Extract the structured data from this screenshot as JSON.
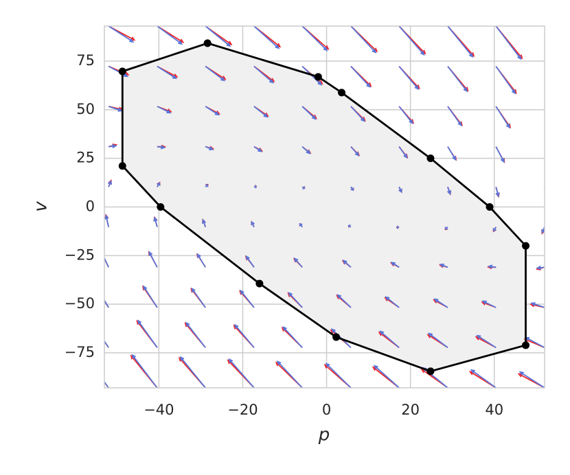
{
  "chart_data": {
    "type": "quiver",
    "xlabel": "p",
    "ylabel": "v",
    "xlim": [
      -53,
      52
    ],
    "ylim": [
      -93,
      93
    ],
    "xticks": [
      {
        "value": -40,
        "label": "−40"
      },
      {
        "value": -20,
        "label": "−20"
      },
      0,
      20,
      40
    ],
    "yticks": [
      {
        "value": -75,
        "label": "−75"
      },
      {
        "value": -50,
        "label": "−50"
      },
      {
        "value": -25,
        "label": "−25"
      },
      0,
      25,
      50,
      75
    ],
    "grid": true,
    "x": [
      -52,
      -40.4,
      -28.9,
      -17.3,
      -5.8,
      5.8,
      17.3,
      28.9,
      40.4,
      52
    ],
    "y": [
      93,
      72.3,
      51.7,
      31,
      10.3,
      -10.3,
      -31,
      -51.7,
      -72.3,
      -93
    ],
    "series": [
      {
        "color": "#f0262a",
        "u": [
          [
            93,
            93,
            93,
            93,
            93,
            93,
            93,
            93,
            93,
            93
          ],
          [
            72.3,
            72.3,
            72.3,
            72.3,
            72.3,
            72.3,
            72.3,
            72.3,
            72.3,
            72.3
          ],
          [
            51.7,
            51.7,
            51.7,
            51.7,
            51.7,
            51.7,
            51.7,
            51.7,
            51.7,
            51.7
          ],
          [
            31,
            31,
            31,
            31,
            31,
            31,
            31,
            31,
            31,
            31
          ],
          [
            10.3,
            10.3,
            10.3,
            10.3,
            10.3,
            10.3,
            10.3,
            10.3,
            10.3,
            10.3
          ],
          [
            -10.3,
            -10.3,
            -10.3,
            -10.3,
            -10.3,
            -10.3,
            -10.3,
            -10.3,
            -10.3,
            -10.3
          ],
          [
            -31,
            -31,
            -31,
            -31,
            -31,
            -31,
            -31,
            -31,
            -31,
            -31
          ],
          [
            -51.7,
            -51.7,
            -51.7,
            -51.7,
            -51.7,
            -51.7,
            -51.7,
            -51.7,
            -51.7,
            -51.7
          ],
          [
            -72.3,
            -72.3,
            -72.3,
            -72.3,
            -72.3,
            -72.3,
            -72.3,
            -72.3,
            -72.3,
            -72.3
          ],
          [
            -93,
            -93,
            -93,
            -93,
            -93,
            -93,
            -93,
            -93,
            -93,
            -93
          ]
        ],
        "v": [
          [
            -108,
            -125.4,
            -142.6,
            -160,
            -177.3,
            -194.7,
            -212,
            -229.4,
            -246.6,
            -264
          ],
          [
            -66.6,
            -84,
            -101.2,
            -118.6,
            -135.9,
            -153.3,
            -170.6,
            -188,
            -205.2,
            -222.6
          ],
          [
            -25.4,
            -42.8,
            -60,
            -77.4,
            -94.7,
            -112.1,
            -129.4,
            -146.8,
            -164,
            -181.4
          ],
          [
            16,
            -1.4,
            -18.6,
            -36,
            -53.3,
            -70.7,
            -88,
            -105.4,
            -122.6,
            -140
          ],
          [
            57.4,
            40,
            22.8,
            5.4,
            -11.9,
            -29.3,
            -46.6,
            -64,
            -81.2,
            -98.6
          ],
          [
            98.6,
            81.2,
            64,
            46.6,
            29.3,
            11.9,
            -5.4,
            -22.8,
            -40,
            -57.4
          ],
          [
            140,
            122.6,
            105.4,
            88,
            70.7,
            53.3,
            36,
            18.6,
            1.4,
            -16
          ],
          [
            181.4,
            164,
            146.8,
            129.4,
            112.1,
            94.7,
            77.4,
            60,
            42.8,
            25.4
          ],
          [
            222.6,
            205.2,
            188,
            170.6,
            153.3,
            135.9,
            118.6,
            101.2,
            84,
            66.6
          ],
          [
            264,
            246.6,
            229.4,
            212,
            194.7,
            177.3,
            160,
            142.6,
            125.4,
            108
          ]
        ]
      },
      {
        "color": "#5a75d8",
        "u": [
          [
            88.4,
            88.4,
            88.4,
            88.4,
            88.4,
            88.4,
            88.4,
            88.4,
            88.4,
            88.4
          ],
          [
            68.7,
            68.7,
            68.7,
            68.7,
            68.7,
            68.7,
            68.7,
            68.7,
            68.7,
            68.7
          ],
          [
            49.1,
            49.1,
            49.1,
            49.1,
            49.1,
            49.1,
            49.1,
            49.1,
            49.1,
            49.1
          ],
          [
            29.5,
            29.5,
            29.5,
            29.5,
            29.5,
            29.5,
            29.5,
            29.5,
            29.5,
            29.5
          ],
          [
            9.8,
            9.8,
            9.8,
            9.8,
            9.8,
            9.8,
            9.8,
            9.8,
            9.8,
            9.8
          ],
          [
            -9.8,
            -9.8,
            -9.8,
            -9.8,
            -9.8,
            -9.8,
            -9.8,
            -9.8,
            -9.8,
            -9.8
          ],
          [
            -29.5,
            -29.5,
            -29.5,
            -29.5,
            -29.5,
            -29.5,
            -29.5,
            -29.5,
            -29.5,
            -29.5
          ],
          [
            -49.1,
            -49.1,
            -49.1,
            -49.1,
            -49.1,
            -49.1,
            -49.1,
            -49.1,
            -49.1,
            -49.1
          ],
          [
            -68.7,
            -68.7,
            -68.7,
            -68.7,
            -68.7,
            -68.7,
            -68.7,
            -68.7,
            -68.7,
            -68.7
          ],
          [
            -88.4,
            -88.4,
            -88.4,
            -88.4,
            -88.4,
            -88.4,
            -88.4,
            -88.4,
            -88.4,
            -88.4
          ]
        ],
        "v": [
          [
            -122.5,
            -138.7,
            -154.8,
            -171.1,
            -187.2,
            -203.4,
            -219.5,
            -235.8,
            -251.9,
            -268.1
          ],
          [
            -79,
            -95.2,
            -111.3,
            -127.6,
            -143.7,
            -159.9,
            -176,
            -192.3,
            -208.4,
            -224.6
          ],
          [
            -35.8,
            -52,
            -68.1,
            -84.4,
            -100.5,
            -116.7,
            -132.8,
            -149.1,
            -165.2,
            -181.4
          ],
          [
            7.7,
            -8.5,
            -24.6,
            -40.9,
            -57,
            -73.2,
            -89.3,
            -105.6,
            -121.7,
            -137.9
          ],
          [
            51.2,
            35,
            18.9,
            2.6,
            -13.5,
            -29.7,
            -45.8,
            -62.1,
            -78.2,
            -94.4
          ],
          [
            94.4,
            78.2,
            62.1,
            45.8,
            29.7,
            13.5,
            -2.6,
            -18.9,
            -35,
            -51.2
          ],
          [
            137.9,
            121.7,
            105.6,
            89.3,
            73.2,
            57,
            40.9,
            24.6,
            8.5,
            -7.7
          ],
          [
            181.4,
            165.2,
            149.1,
            132.8,
            116.7,
            100.5,
            84.4,
            68.1,
            52,
            35.8
          ],
          [
            224.6,
            208.4,
            192.3,
            176,
            159.9,
            143.7,
            127.6,
            111.3,
            95.2,
            79
          ],
          [
            268.1,
            251.9,
            235.8,
            219.5,
            203.4,
            187.2,
            171.1,
            154.8,
            138.7,
            122.5
          ]
        ]
      }
    ],
    "polygon": {
      "fill": "#f0f0f0",
      "color": "#000000",
      "x": [
        -48.7,
        -28.4,
        -2,
        3.6,
        24.8,
        38.9,
        47.5,
        47.5,
        24.8,
        2.3,
        -16,
        -39.6,
        -48.7
      ],
      "y": [
        69.7,
        84.2,
        66.9,
        58.8,
        25,
        0,
        -20,
        -71.1,
        -84.5,
        -66.9,
        -39.4,
        0,
        21.1
      ]
    }
  }
}
